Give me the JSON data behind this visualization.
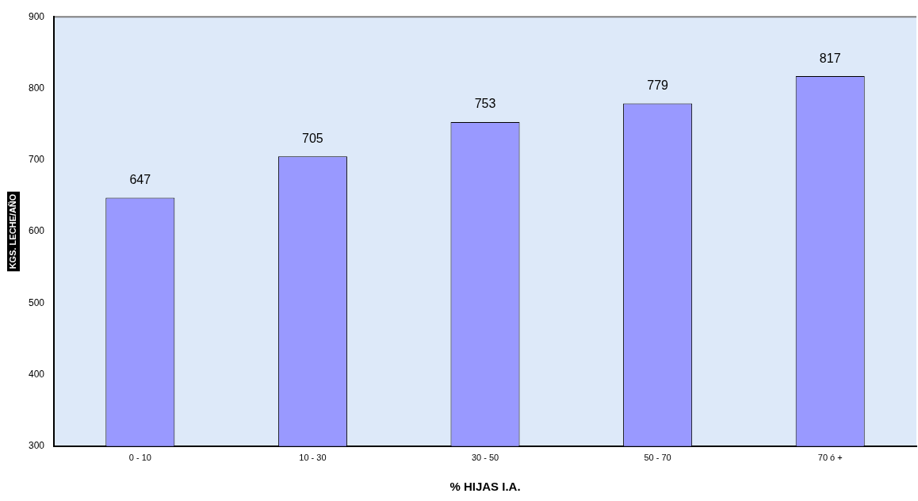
{
  "chart_data": {
    "type": "bar",
    "xlabel": "% HIJAS I.A.",
    "ylabel": "KGS. LECHE/AÑO",
    "categories": [
      "0 - 10",
      "10 - 30",
      "30 - 50",
      "50 - 70",
      "70 ó +"
    ],
    "values": [
      647,
      705,
      753,
      779,
      817
    ],
    "color": "#9999ff",
    "data_labels": true,
    "ylim": [
      300,
      900
    ],
    "yticks": [
      300,
      400,
      500,
      600,
      700,
      800,
      900
    ],
    "grid": false,
    "legend": false
  }
}
